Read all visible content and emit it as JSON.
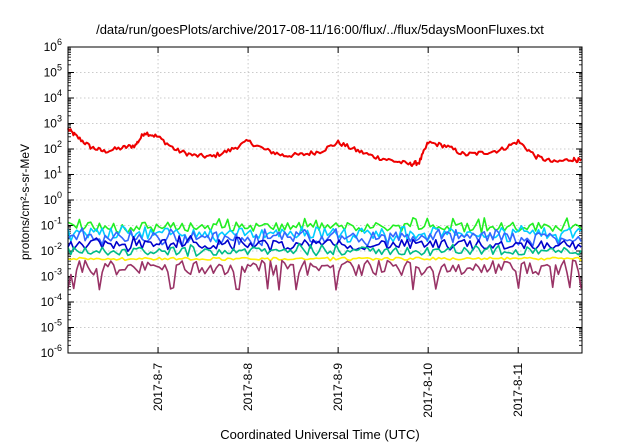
{
  "chart_data": {
    "type": "line",
    "title": "/data/run/goesPlots/archive/2017-08-11/16:00/flux/../flux/5daysMoonFluxes.txt",
    "xlabel": "Coordinated Universal Time (UTC)",
    "ylabel": "protons/cm²-s-sr-MeV",
    "y_scale": "log",
    "ylim_exponent": [
      -6,
      6
    ],
    "y_tick_exponents": [
      -6,
      -5,
      -4,
      -3,
      -2,
      -1,
      0,
      1,
      2,
      3,
      4,
      5,
      6
    ],
    "x_range": [
      "2017-08-06 00:00",
      "2017-08-11 17:00"
    ],
    "x_tick_labels": [
      "2017-8-7",
      "2017-8-8",
      "2017-8-9",
      "2017-8-10",
      "2017-8-11"
    ],
    "grid": true,
    "series": [
      {
        "color": "#ee0000",
        "points_day_offset": [
          0.0,
          0.1,
          0.25,
          0.4,
          0.6,
          0.75,
          0.85,
          1.0,
          1.2,
          1.4,
          1.6,
          1.8,
          2.0,
          2.2,
          2.4,
          2.6,
          2.8,
          3.0,
          3.2,
          3.4,
          3.6,
          3.8,
          3.9,
          4.0,
          4.2,
          4.4,
          4.6,
          4.8,
          5.0,
          5.2,
          5.4,
          5.6,
          5.7
        ],
        "values": [
          600,
          300,
          120,
          80,
          110,
          140,
          450,
          300,
          90,
          55,
          50,
          90,
          200,
          90,
          55,
          60,
          80,
          180,
          90,
          50,
          35,
          25,
          30,
          180,
          130,
          60,
          70,
          90,
          200,
          50,
          30,
          40,
          35
        ]
      },
      {
        "color": "#22ee22",
        "mean": 0.09,
        "min": 0.05,
        "max": 0.2
      },
      {
        "color": "#00ccff",
        "mean": 0.05,
        "min": 0.02,
        "max": 0.1
      },
      {
        "color": "#3366ff",
        "mean": 0.035,
        "min": 0.015,
        "max": 0.08
      },
      {
        "color": "#0000cc",
        "mean": 0.018,
        "min": 0.009,
        "max": 0.04
      },
      {
        "color": "#00bb88",
        "mean": 0.01,
        "min": 0.006,
        "max": 0.02
      },
      {
        "color": "#ffee00",
        "mean": 0.005,
        "min": 0.004,
        "max": 0.006
      },
      {
        "color": "#993366",
        "mean": 0.0022,
        "min": 0.0003,
        "max": 0.003
      }
    ]
  }
}
